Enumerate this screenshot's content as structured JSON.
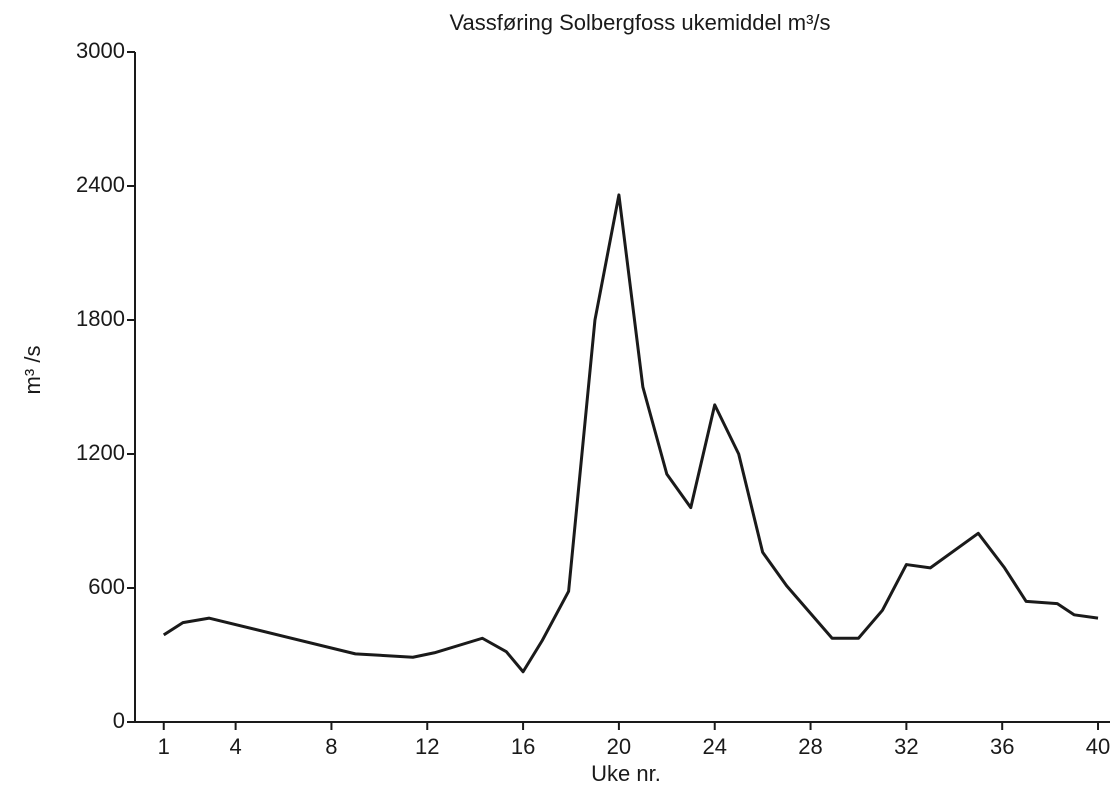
{
  "chart_data": {
    "type": "line",
    "title": "Vassføring Solbergfoss ukemiddel m³/s",
    "ylabel": "m³ /s",
    "xlabel": "Uke nr.",
    "x": [
      1,
      1.8,
      2.9,
      9,
      11.4,
      12.3,
      14.3,
      15.3,
      16,
      16.8,
      17.9,
      19,
      20,
      21,
      22,
      23,
      24,
      25,
      26,
      27,
      28.9,
      30,
      31,
      32,
      33,
      35,
      36.1,
      37,
      38.3,
      39,
      40
    ],
    "series": [
      {
        "name": "Vassføring",
        "color": "#1a1a1a",
        "values": [
          390,
          445,
          465,
          305,
          290,
          310,
          375,
          315,
          225,
          365,
          585,
          1800,
          2360,
          1500,
          1110,
          960,
          1420,
          1200,
          760,
          610,
          375,
          375,
          500,
          705,
          690,
          845,
          690,
          540,
          530,
          480,
          465
        ]
      }
    ],
    "xlim": [
      -0.2,
      40.5
    ],
    "xticks": [
      1,
      4,
      8,
      12,
      16,
      20,
      24,
      28,
      32,
      36,
      40
    ],
    "ylim": [
      0,
      3000
    ],
    "yticks": [
      0,
      600,
      1200,
      1800,
      2400,
      3000
    ]
  }
}
